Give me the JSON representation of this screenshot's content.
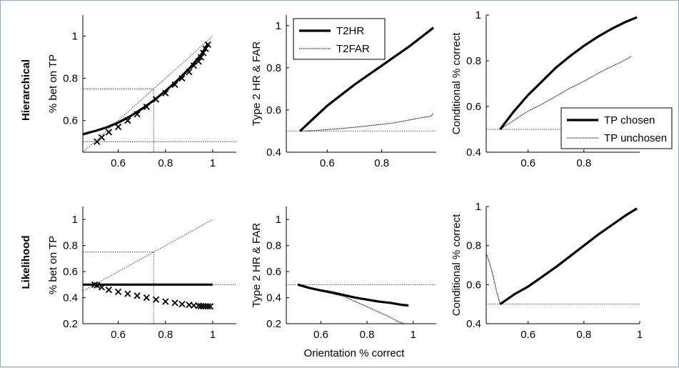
{
  "row_labels": [
    "Hierarchical",
    "Likelihood"
  ],
  "chart_data": [
    {
      "id": "hier-1",
      "type": "line",
      "row": "Hierarchical",
      "ylabel": "% bet on TP",
      "xlabel": "",
      "xlim": [
        0.45,
        1.1
      ],
      "ylim": [
        0.45,
        1.1
      ],
      "xticks": [
        0.6,
        0.8,
        1
      ],
      "xtick_labels": [
        "0.6",
        "0.8",
        "1"
      ],
      "yticks": [
        0.6,
        0.8,
        1
      ],
      "ytick_labels": [
        "0.6",
        "0.8",
        "1"
      ],
      "series": [
        {
          "style": "thick",
          "x": [
            0.45,
            0.5,
            0.55,
            0.6,
            0.65,
            0.7,
            0.75,
            0.8,
            0.85,
            0.9,
            0.95,
            0.98
          ],
          "y": [
            0.535,
            0.55,
            0.567,
            0.59,
            0.62,
            0.655,
            0.695,
            0.74,
            0.79,
            0.845,
            0.91,
            0.965
          ]
        },
        {
          "style": "thin",
          "x": [
            0.45,
            1.0
          ],
          "y": [
            0.45,
            1.0
          ]
        },
        {
          "style": "markers",
          "marker": "x",
          "x": [
            0.51,
            0.53,
            0.56,
            0.6,
            0.64,
            0.68,
            0.72,
            0.76,
            0.8,
            0.84,
            0.87,
            0.9,
            0.92,
            0.94,
            0.95,
            0.96,
            0.97,
            0.98
          ],
          "y": [
            0.5,
            0.52,
            0.545,
            0.57,
            0.6,
            0.63,
            0.665,
            0.7,
            0.73,
            0.77,
            0.8,
            0.83,
            0.86,
            0.88,
            0.9,
            0.92,
            0.94,
            0.96
          ]
        }
      ],
      "guides": {
        "hlines": [
          0.5
        ],
        "ref": [
          0.75,
          0.75
        ]
      }
    },
    {
      "id": "hier-2",
      "type": "line",
      "row": "Hierarchical",
      "ylabel": "Type 2 HR & FAR",
      "xlabel": "",
      "xlim": [
        0.45,
        1.0
      ],
      "ylim": [
        0.4,
        1.05
      ],
      "xticks": [
        0.6,
        0.8
      ],
      "xtick_labels": [
        "0.6",
        "0.8"
      ],
      "yticks": [
        0.4,
        0.6,
        0.8,
        1
      ],
      "ytick_labels": [
        "0.4",
        "0.6",
        "0.8",
        "1"
      ],
      "legend": {
        "placement": "top",
        "entries": [
          "T2HR",
          "T2FAR"
        ]
      },
      "series": [
        {
          "name": "T2HR",
          "style": "thick",
          "x": [
            0.5,
            0.55,
            0.6,
            0.65,
            0.7,
            0.75,
            0.8,
            0.85,
            0.9,
            0.95,
            0.99
          ],
          "y": [
            0.5,
            0.56,
            0.62,
            0.67,
            0.72,
            0.765,
            0.81,
            0.855,
            0.9,
            0.95,
            0.99
          ]
        },
        {
          "name": "T2FAR",
          "style": "dotted",
          "x": [
            0.5,
            0.55,
            0.6,
            0.65,
            0.7,
            0.75,
            0.8,
            0.85,
            0.9,
            0.95,
            0.98,
            0.99
          ],
          "y": [
            0.5,
            0.502,
            0.507,
            0.512,
            0.518,
            0.525,
            0.532,
            0.54,
            0.552,
            0.565,
            0.57,
            0.585
          ]
        }
      ],
      "guides": {
        "hlines": [
          0.5
        ]
      }
    },
    {
      "id": "hier-3",
      "type": "line",
      "row": "Hierarchical",
      "ylabel": "Conditional % correct",
      "xlabel": "",
      "xlim": [
        0.45,
        1.0
      ],
      "ylim": [
        0.4,
        1.0
      ],
      "xticks": [
        0.6,
        0.8
      ],
      "xtick_labels": [
        "0.6",
        "0.8"
      ],
      "yticks": [
        0.4,
        0.6,
        0.8,
        1
      ],
      "ytick_labels": [
        "0.4",
        "0.6",
        "0.8",
        "1"
      ],
      "legend": {
        "placement": "bottom-right",
        "entries": [
          "TP chosen",
          "TP unchosen"
        ]
      },
      "series": [
        {
          "name": "TP chosen",
          "style": "thick",
          "x": [
            0.5,
            0.55,
            0.6,
            0.65,
            0.7,
            0.75,
            0.8,
            0.85,
            0.9,
            0.95,
            0.99
          ],
          "y": [
            0.5,
            0.58,
            0.65,
            0.71,
            0.77,
            0.82,
            0.865,
            0.905,
            0.94,
            0.97,
            0.99
          ]
        },
        {
          "name": "TP unchosen",
          "style": "dotted",
          "x": [
            0.5,
            0.55,
            0.6,
            0.65,
            0.7,
            0.75,
            0.8,
            0.85,
            0.9,
            0.95,
            0.97
          ],
          "y": [
            0.5,
            0.54,
            0.58,
            0.61,
            0.645,
            0.68,
            0.71,
            0.745,
            0.775,
            0.805,
            0.82
          ]
        }
      ],
      "guides": {
        "hlines": [
          0.5
        ]
      }
    },
    {
      "id": "like-1",
      "type": "line",
      "row": "Likelihood",
      "ylabel": "% bet on TP",
      "xlabel": "",
      "xlim": [
        0.45,
        1.1
      ],
      "ylim": [
        0.2,
        1.1
      ],
      "xticks": [
        0.6,
        0.8,
        1
      ],
      "xtick_labels": [
        "0.6",
        "0.8",
        "1"
      ],
      "yticks": [
        0.2,
        0.4,
        0.6,
        0.8,
        1
      ],
      "ytick_labels": [
        "0.2",
        "0.4",
        "0.6",
        "0.8",
        "1"
      ],
      "series": [
        {
          "style": "thick",
          "x": [
            0.45,
            1.0
          ],
          "y": [
            0.5,
            0.5
          ]
        },
        {
          "style": "thin",
          "x": [
            0.45,
            1.0
          ],
          "y": [
            0.45,
            1.0
          ]
        },
        {
          "style": "markers",
          "marker": "x",
          "x": [
            0.5,
            0.51,
            0.53,
            0.56,
            0.6,
            0.64,
            0.68,
            0.72,
            0.76,
            0.8,
            0.84,
            0.87,
            0.9,
            0.92,
            0.94,
            0.95,
            0.96,
            0.97,
            0.98,
            0.99
          ],
          "y": [
            0.5,
            0.495,
            0.48,
            0.46,
            0.445,
            0.43,
            0.415,
            0.4,
            0.385,
            0.37,
            0.36,
            0.35,
            0.345,
            0.34,
            0.337,
            0.335,
            0.334,
            0.334,
            0.333,
            0.333
          ]
        }
      ],
      "guides": {
        "hlines": [
          0.5
        ],
        "ref": [
          0.75,
          0.75
        ]
      }
    },
    {
      "id": "like-2",
      "type": "line",
      "row": "Likelihood",
      "ylabel": "Type 2 HR & FAR",
      "xlabel": "Orientation % correct",
      "xlim": [
        0.45,
        1.1
      ],
      "ylim": [
        0.2,
        1.1
      ],
      "xticks": [
        0.6,
        0.8,
        1
      ],
      "xtick_labels": [
        "0.6",
        "0.8",
        "1"
      ],
      "yticks": [
        0.2,
        0.4,
        0.6,
        0.8,
        1
      ],
      "ytick_labels": [
        "0.2",
        "0.4",
        "0.6",
        "0.8",
        "1"
      ],
      "series": [
        {
          "name": "T2HR",
          "style": "thick",
          "x": [
            0.5,
            0.55,
            0.6,
            0.65,
            0.7,
            0.75,
            0.8,
            0.85,
            0.9,
            0.95,
            0.98
          ],
          "y": [
            0.5,
            0.475,
            0.455,
            0.44,
            0.42,
            0.4,
            0.385,
            0.37,
            0.36,
            0.345,
            0.34
          ]
        },
        {
          "name": "T2FAR",
          "style": "dotted",
          "x": [
            0.5,
            0.55,
            0.6,
            0.65,
            0.7,
            0.75,
            0.8,
            0.85,
            0.9,
            0.93,
            0.96
          ],
          "y": [
            0.5,
            0.47,
            0.45,
            0.43,
            0.41,
            0.37,
            0.33,
            0.29,
            0.25,
            0.22,
            0.2
          ]
        }
      ],
      "guides": {
        "hlines": [
          0.5
        ]
      }
    },
    {
      "id": "like-3",
      "type": "line",
      "row": "Likelihood",
      "ylabel": "Conditional % correct",
      "xlabel": "",
      "xlim": [
        0.45,
        1.0
      ],
      "ylim": [
        0.4,
        1.0
      ],
      "xticks": [
        0.6,
        0.8,
        1
      ],
      "xtick_labels": [
        "0.6",
        "0.8",
        "1"
      ],
      "yticks": [
        0.4,
        0.6,
        0.8,
        1
      ],
      "ytick_labels": [
        "0.4",
        "0.6",
        "0.8",
        "1"
      ],
      "series": [
        {
          "name": "TP chosen",
          "style": "thick",
          "x": [
            0.5,
            0.55,
            0.6,
            0.65,
            0.7,
            0.75,
            0.8,
            0.85,
            0.9,
            0.95,
            0.99
          ],
          "y": [
            0.5,
            0.55,
            0.59,
            0.64,
            0.69,
            0.745,
            0.8,
            0.855,
            0.905,
            0.955,
            0.99
          ]
        },
        {
          "name": "TP unchosen",
          "style": "dotted",
          "x": [
            0.45,
            0.46,
            0.47,
            0.48,
            0.49,
            0.5
          ],
          "y": [
            0.76,
            0.72,
            0.67,
            0.61,
            0.55,
            0.5
          ]
        }
      ],
      "guides": {
        "hlines": [
          0.5
        ]
      }
    }
  ]
}
